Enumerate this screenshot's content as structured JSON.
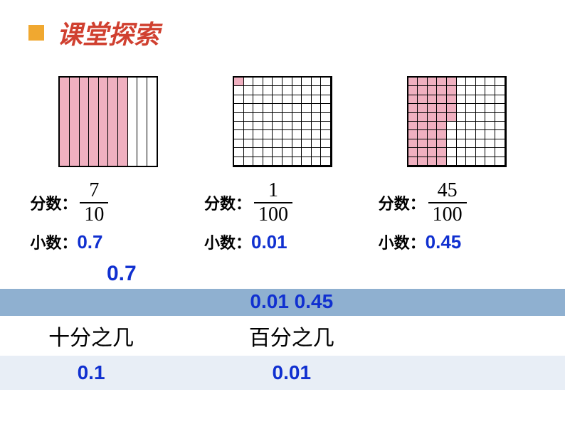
{
  "header": {
    "title": "课堂探索"
  },
  "panels": [
    {
      "grid_type": "ten",
      "filled": 7,
      "fill_color": "#f0b0c0",
      "fraction_label": "分数：",
      "numerator": "7",
      "denominator": "10",
      "decimal_label": "小数：",
      "decimal_value": "0.7"
    },
    {
      "grid_type": "hundred",
      "filled": 1,
      "fill_color": "#f0b0c0",
      "fraction_label": "分数：",
      "numerator": "1",
      "denominator": "100",
      "decimal_label": "小数：",
      "decimal_value": "0.01"
    },
    {
      "grid_type": "hundred",
      "filled": 45,
      "fill_color": "#f0b0c0",
      "fraction_label": "分数：",
      "numerator": "45",
      "denominator": "100",
      "decimal_label": "小数：",
      "decimal_value": "0.45"
    }
  ],
  "extra_value": "0.7",
  "table": {
    "header_mid": "0.01  0.45",
    "row1": {
      "c1": "十分之几",
      "c2": "百分之几"
    },
    "row2": {
      "c1": "0.1",
      "c2": "0.01"
    },
    "colors": {
      "header_bg": "#8fb0d0",
      "alt_bg": "#e8eef6",
      "text_blue": "#1030d0"
    }
  },
  "styling": {
    "title_color": "#d04030",
    "bullet_color": "#f0a830",
    "grid_border": "#000000",
    "fill_color": "#f0b0c0"
  }
}
